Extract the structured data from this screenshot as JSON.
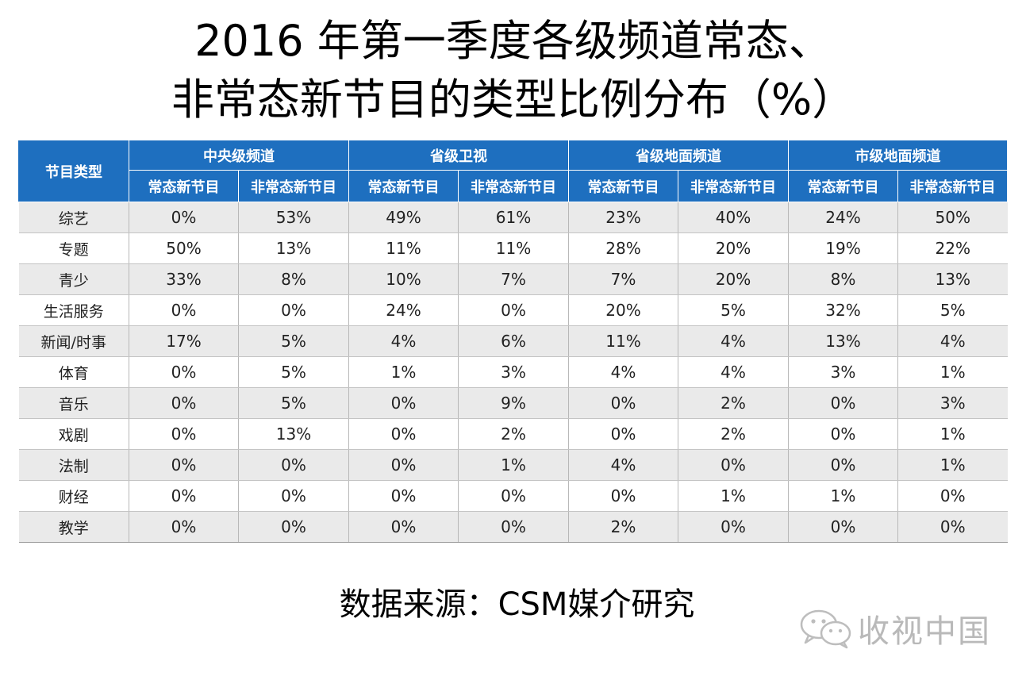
{
  "title": {
    "line1": "2016 年第一季度各级频道常态、",
    "line2": "非常态新节目的类型比例分布（%）"
  },
  "colors": {
    "header_bg": "#1e6fbf",
    "header_text": "#ffffff",
    "row_alt_bg": "#eaeaea",
    "watermark": "#b9b9b9"
  },
  "chart_data": {
    "type": "table",
    "row_header": "节目类型",
    "groups": [
      "中央级频道",
      "省级卫视",
      "省级地面频道",
      "市级地面频道"
    ],
    "sub_columns": [
      "常态新节目",
      "非常态新节目"
    ],
    "rows": [
      {
        "label": "综艺",
        "values": [
          "0%",
          "53%",
          "49%",
          "61%",
          "23%",
          "40%",
          "24%",
          "50%"
        ]
      },
      {
        "label": "专题",
        "values": [
          "50%",
          "13%",
          "11%",
          "11%",
          "28%",
          "20%",
          "19%",
          "22%"
        ]
      },
      {
        "label": "青少",
        "values": [
          "33%",
          "8%",
          "10%",
          "7%",
          "7%",
          "20%",
          "8%",
          "13%"
        ]
      },
      {
        "label": "生活服务",
        "values": [
          "0%",
          "0%",
          "24%",
          "0%",
          "20%",
          "5%",
          "32%",
          "5%"
        ]
      },
      {
        "label": "新闻/时事",
        "values": [
          "17%",
          "5%",
          "4%",
          "6%",
          "11%",
          "4%",
          "13%",
          "4%"
        ]
      },
      {
        "label": "体育",
        "values": [
          "0%",
          "5%",
          "1%",
          "3%",
          "4%",
          "4%",
          "3%",
          "1%"
        ]
      },
      {
        "label": "音乐",
        "values": [
          "0%",
          "5%",
          "0%",
          "9%",
          "0%",
          "2%",
          "0%",
          "3%"
        ]
      },
      {
        "label": "戏剧",
        "values": [
          "0%",
          "13%",
          "0%",
          "2%",
          "0%",
          "2%",
          "0%",
          "1%"
        ]
      },
      {
        "label": "法制",
        "values": [
          "0%",
          "0%",
          "0%",
          "1%",
          "4%",
          "0%",
          "0%",
          "1%"
        ]
      },
      {
        "label": "财经",
        "values": [
          "0%",
          "0%",
          "0%",
          "0%",
          "0%",
          "1%",
          "1%",
          "0%"
        ]
      },
      {
        "label": "教学",
        "values": [
          "0%",
          "0%",
          "0%",
          "0%",
          "2%",
          "0%",
          "0%",
          "0%"
        ]
      }
    ]
  },
  "source": "数据来源：CSM媒介研究",
  "watermark": {
    "icon": "wechat-icon",
    "text": "收视中国"
  }
}
